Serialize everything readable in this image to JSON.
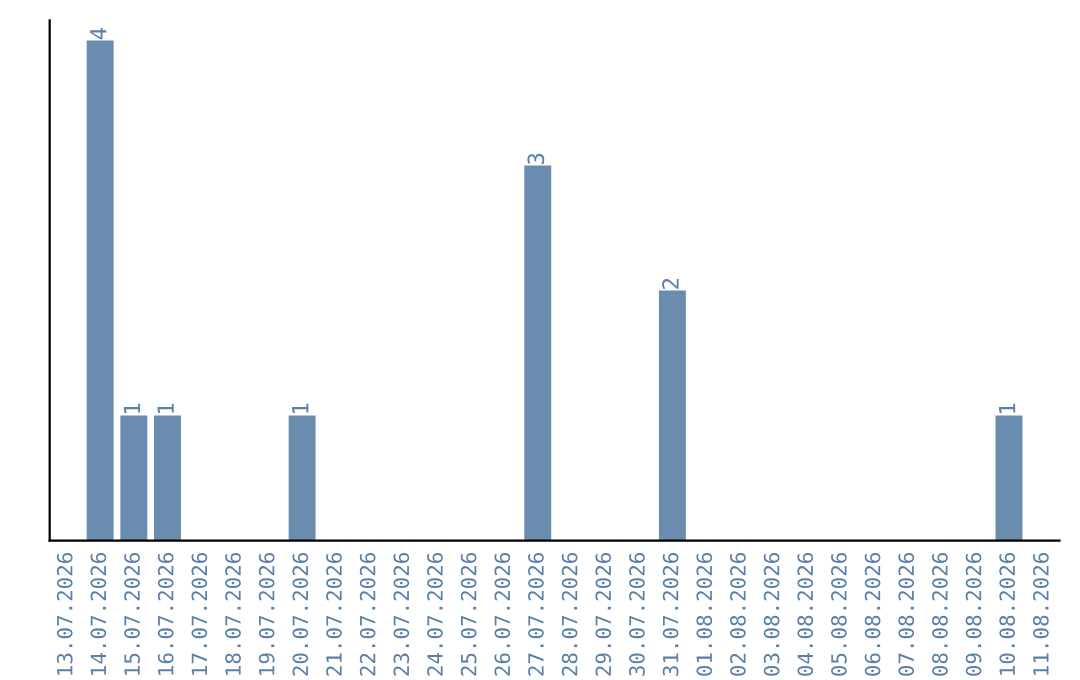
{
  "chart_data": {
    "type": "bar",
    "categories": [
      "13.07.2026",
      "14.07.2026",
      "15.07.2026",
      "16.07.2026",
      "17.07.2026",
      "18.07.2026",
      "19.07.2026",
      "20.07.2026",
      "21.07.2026",
      "22.07.2026",
      "23.07.2026",
      "24.07.2026",
      "25.07.2026",
      "26.07.2026",
      "27.07.2026",
      "28.07.2026",
      "29.07.2026",
      "30.07.2026",
      "31.07.2026",
      "01.08.2026",
      "02.08.2026",
      "03.08.2026",
      "04.08.2026",
      "05.08.2026",
      "06.08.2026",
      "07.08.2026",
      "08.08.2026",
      "09.08.2026",
      "10.08.2026",
      "11.08.2026"
    ],
    "values": [
      0,
      4,
      1,
      1,
      0,
      0,
      0,
      1,
      0,
      0,
      0,
      0,
      0,
      0,
      3,
      0,
      0,
      0,
      2,
      0,
      0,
      0,
      0,
      0,
      0,
      0,
      0,
      0,
      1,
      0
    ],
    "value_labels": [
      null,
      "4",
      "1",
      "1",
      null,
      null,
      null,
      "1",
      null,
      null,
      null,
      null,
      null,
      null,
      "3",
      null,
      null,
      null,
      "2",
      null,
      null,
      null,
      null,
      null,
      null,
      null,
      null,
      null,
      "1",
      null
    ],
    "color": "#6a8caf",
    "grid": false,
    "legend": false
  }
}
